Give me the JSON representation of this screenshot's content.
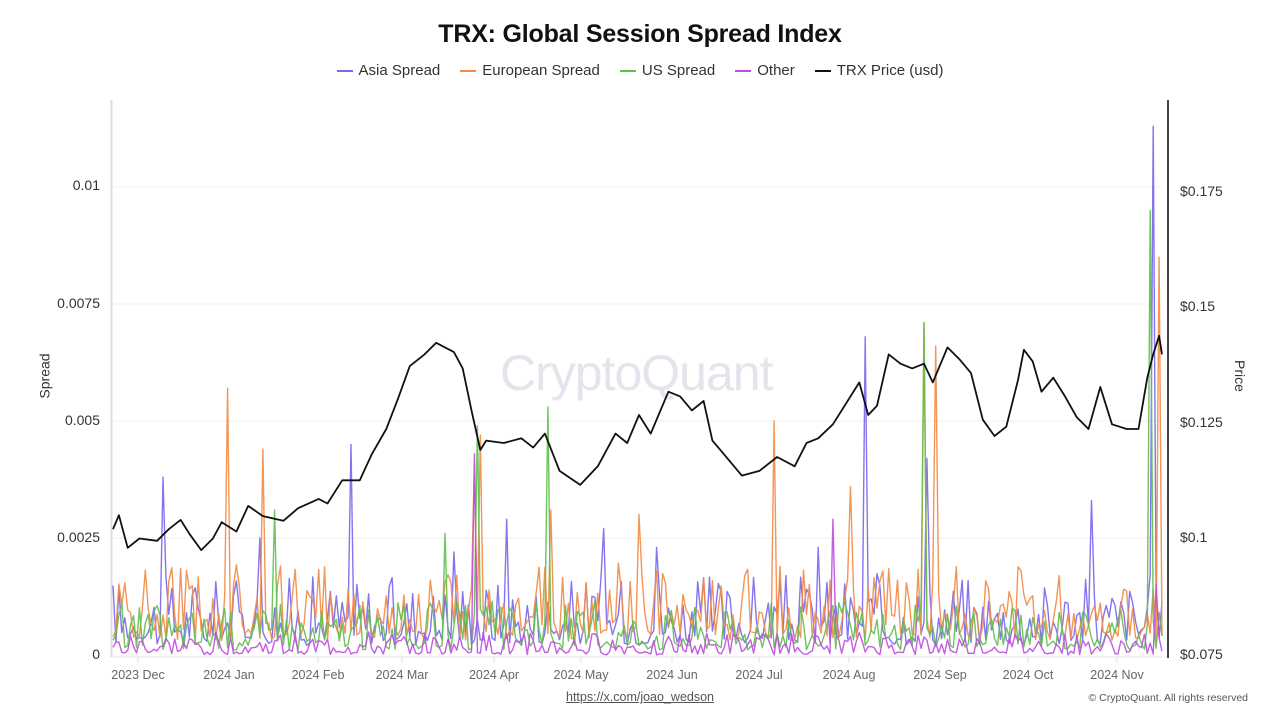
{
  "chart_data": {
    "type": "line",
    "title": "TRX: Global Session Spread Index",
    "xlabel": "",
    "ylabel": "Spread",
    "ylabel_right": "Price",
    "ylim": [
      0,
      0.0118
    ],
    "ylim_right": [
      0.075,
      0.195
    ],
    "grid": true,
    "legend_position": "top",
    "left_ticks": [
      "0",
      "0.0025",
      "0.005",
      "0.0075",
      "0.01"
    ],
    "right_ticks": [
      "$0.075",
      "$0.1",
      "$0.125",
      "$0.15",
      "$0.175"
    ],
    "x_ticks": [
      "2023 Dec",
      "2024 Jan",
      "2024 Feb",
      "2024 Mar",
      "2024 Apr",
      "2024 May",
      "2024 Jun",
      "2024 Jul",
      "2024 Aug",
      "2024 Sep",
      "2024 Oct",
      "2024 Nov"
    ],
    "x_range": [
      "2023-11-23",
      "2024-11-14"
    ],
    "series": [
      {
        "name": "Asia Spread",
        "color": "#7b68ee",
        "axis": "left",
        "spikes": [
          {
            "date": "2023-12-10",
            "value": 0.0038
          },
          {
            "date": "2024-01-12",
            "value": 0.0025
          },
          {
            "date": "2024-02-12",
            "value": 0.0045
          },
          {
            "date": "2024-03-18",
            "value": 0.0022
          },
          {
            "date": "2024-04-05",
            "value": 0.0029
          },
          {
            "date": "2024-05-08",
            "value": 0.0027
          },
          {
            "date": "2024-05-26",
            "value": 0.0023
          },
          {
            "date": "2024-07-20",
            "value": 0.0023
          },
          {
            "date": "2024-08-05",
            "value": 0.0068
          },
          {
            "date": "2024-08-26",
            "value": 0.0042
          },
          {
            "date": "2024-10-21",
            "value": 0.0033
          },
          {
            "date": "2024-11-11",
            "value": 0.0113
          }
        ],
        "baseline_range": [
          0.0002,
          0.0018
        ]
      },
      {
        "name": "European Spread",
        "color": "#f28c45",
        "axis": "left",
        "spikes": [
          {
            "date": "2024-01-01",
            "value": 0.0057
          },
          {
            "date": "2024-01-13",
            "value": 0.0044
          },
          {
            "date": "2024-03-25",
            "value": 0.0041
          },
          {
            "date": "2024-03-27",
            "value": 0.0047
          },
          {
            "date": "2024-04-20",
            "value": 0.0031
          },
          {
            "date": "2024-05-20",
            "value": 0.003
          },
          {
            "date": "2024-07-05",
            "value": 0.005
          },
          {
            "date": "2024-07-31",
            "value": 0.0036
          },
          {
            "date": "2024-08-25",
            "value": 0.0071
          },
          {
            "date": "2024-08-29",
            "value": 0.0066
          },
          {
            "date": "2024-11-13",
            "value": 0.0085
          }
        ],
        "baseline_range": [
          0.0003,
          0.002
        ]
      },
      {
        "name": "US Spread",
        "color": "#62bf4f",
        "axis": "left",
        "spikes": [
          {
            "date": "2024-01-17",
            "value": 0.0031
          },
          {
            "date": "2024-03-15",
            "value": 0.0026
          },
          {
            "date": "2024-03-26",
            "value": 0.0049
          },
          {
            "date": "2024-04-19",
            "value": 0.0053
          },
          {
            "date": "2024-08-25",
            "value": 0.0071
          },
          {
            "date": "2024-11-10",
            "value": 0.0095
          }
        ],
        "baseline_range": [
          0.0001,
          0.0012
        ]
      },
      {
        "name": "Other",
        "color": "#c04ee0",
        "axis": "left",
        "spikes": [
          {
            "date": "2024-03-25",
            "value": 0.0043
          },
          {
            "date": "2024-07-25",
            "value": 0.0029
          },
          {
            "date": "2024-11-12",
            "value": 0.0015
          }
        ],
        "baseline_range": [
          0.0,
          0.0005
        ]
      },
      {
        "name": "TRX Price (usd)",
        "color": "#111111",
        "axis": "right",
        "points": [
          [
            "2023-11-23",
            0.102
          ],
          [
            "2023-11-25",
            0.105
          ],
          [
            "2023-11-28",
            0.098
          ],
          [
            "2023-12-02",
            0.1
          ],
          [
            "2023-12-08",
            0.0995
          ],
          [
            "2023-12-12",
            0.102
          ],
          [
            "2023-12-16",
            0.104
          ],
          [
            "2023-12-19",
            0.101
          ],
          [
            "2023-12-23",
            0.0975
          ],
          [
            "2023-12-27",
            0.1
          ],
          [
            "2023-12-30",
            0.1035
          ],
          [
            "2024-01-04",
            0.1015
          ],
          [
            "2024-01-08",
            0.107
          ],
          [
            "2024-01-13",
            0.1048
          ],
          [
            "2024-01-20",
            0.1038
          ],
          [
            "2024-01-25",
            0.1065
          ],
          [
            "2024-02-01",
            0.1085
          ],
          [
            "2024-02-04",
            0.1075
          ],
          [
            "2024-02-09",
            0.1125
          ],
          [
            "2024-02-15",
            0.1125
          ],
          [
            "2024-02-19",
            0.118
          ],
          [
            "2024-02-24",
            0.1235
          ],
          [
            "2024-02-28",
            0.13
          ],
          [
            "2024-03-03",
            0.137
          ],
          [
            "2024-03-08",
            0.1395
          ],
          [
            "2024-03-12",
            0.142
          ],
          [
            "2024-03-18",
            0.14
          ],
          [
            "2024-03-21",
            0.1365
          ],
          [
            "2024-03-24",
            0.1275
          ],
          [
            "2024-03-27",
            0.119
          ],
          [
            "2024-03-29",
            0.121
          ],
          [
            "2024-04-04",
            0.1205
          ],
          [
            "2024-04-10",
            0.1215
          ],
          [
            "2024-04-14",
            0.1195
          ],
          [
            "2024-04-18",
            0.1225
          ],
          [
            "2024-04-23",
            0.1145
          ],
          [
            "2024-04-30",
            0.1115
          ],
          [
            "2024-05-06",
            0.1155
          ],
          [
            "2024-05-12",
            0.1225
          ],
          [
            "2024-05-16",
            0.1205
          ],
          [
            "2024-05-20",
            0.1265
          ],
          [
            "2024-05-24",
            0.1225
          ],
          [
            "2024-05-30",
            0.1315
          ],
          [
            "2024-06-03",
            0.1305
          ],
          [
            "2024-06-07",
            0.1275
          ],
          [
            "2024-06-11",
            0.1295
          ],
          [
            "2024-06-14",
            0.121
          ],
          [
            "2024-06-20",
            0.1165
          ],
          [
            "2024-06-24",
            0.1135
          ],
          [
            "2024-06-30",
            0.1145
          ],
          [
            "2024-07-06",
            0.1175
          ],
          [
            "2024-07-12",
            0.1155
          ],
          [
            "2024-07-16",
            0.1205
          ],
          [
            "2024-07-20",
            0.1215
          ],
          [
            "2024-07-25",
            0.1245
          ],
          [
            "2024-07-30",
            0.1295
          ],
          [
            "2024-08-03",
            0.1335
          ],
          [
            "2024-08-06",
            0.1265
          ],
          [
            "2024-08-09",
            0.1285
          ],
          [
            "2024-08-13",
            0.1395
          ],
          [
            "2024-08-17",
            0.1375
          ],
          [
            "2024-08-21",
            0.1365
          ],
          [
            "2024-08-25",
            0.1375
          ],
          [
            "2024-08-28",
            0.1335
          ],
          [
            "2024-09-02",
            0.141
          ],
          [
            "2024-09-06",
            0.1385
          ],
          [
            "2024-09-10",
            0.1355
          ],
          [
            "2024-09-14",
            0.1255
          ],
          [
            "2024-09-18",
            0.122
          ],
          [
            "2024-09-22",
            0.124
          ],
          [
            "2024-09-26",
            0.134
          ],
          [
            "2024-09-28",
            0.1405
          ],
          [
            "2024-10-01",
            0.138
          ],
          [
            "2024-10-04",
            0.1315
          ],
          [
            "2024-10-08",
            0.1345
          ],
          [
            "2024-10-12",
            0.1305
          ],
          [
            "2024-10-16",
            0.126
          ],
          [
            "2024-10-20",
            0.1235
          ],
          [
            "2024-10-24",
            0.1325
          ],
          [
            "2024-10-28",
            0.1245
          ],
          [
            "2024-11-02",
            0.1235
          ],
          [
            "2024-11-06",
            0.1235
          ],
          [
            "2024-11-09",
            0.1345
          ],
          [
            "2024-11-11",
            0.1395
          ],
          [
            "2024-11-13",
            0.1435
          ],
          [
            "2024-11-14",
            0.1395
          ]
        ]
      }
    ]
  },
  "header": {
    "title": "TRX: Global Session Spread Index"
  },
  "legend": [
    {
      "label": "Asia Spread",
      "color": "#7b68ee"
    },
    {
      "label": "European Spread",
      "color": "#f28c45"
    },
    {
      "label": "US Spread",
      "color": "#62bf4f"
    },
    {
      "label": "Other",
      "color": "#c04ee0"
    },
    {
      "label": "TRX Price (usd)",
      "color": "#111111"
    }
  ],
  "axes": {
    "left_title": "Spread",
    "right_title": "Price",
    "left_ticks": [
      "0",
      "0.0025",
      "0.005",
      "0.0075",
      "0.01"
    ],
    "right_ticks": [
      "$0.075",
      "$0.1",
      "$0.125",
      "$0.15",
      "$0.175"
    ],
    "x_ticks": [
      "2023 Dec",
      "2024 Jan",
      "2024 Feb",
      "2024 Mar",
      "2024 Apr",
      "2024 May",
      "2024 Jun",
      "2024 Jul",
      "2024 Aug",
      "2024 Sep",
      "2024 Oct",
      "2024 Nov"
    ]
  },
  "watermark": "CryptoQuant",
  "footer": {
    "link_text": "https://x.com/joao_wedson",
    "copyright": "© CryptoQuant. All rights reserved"
  }
}
